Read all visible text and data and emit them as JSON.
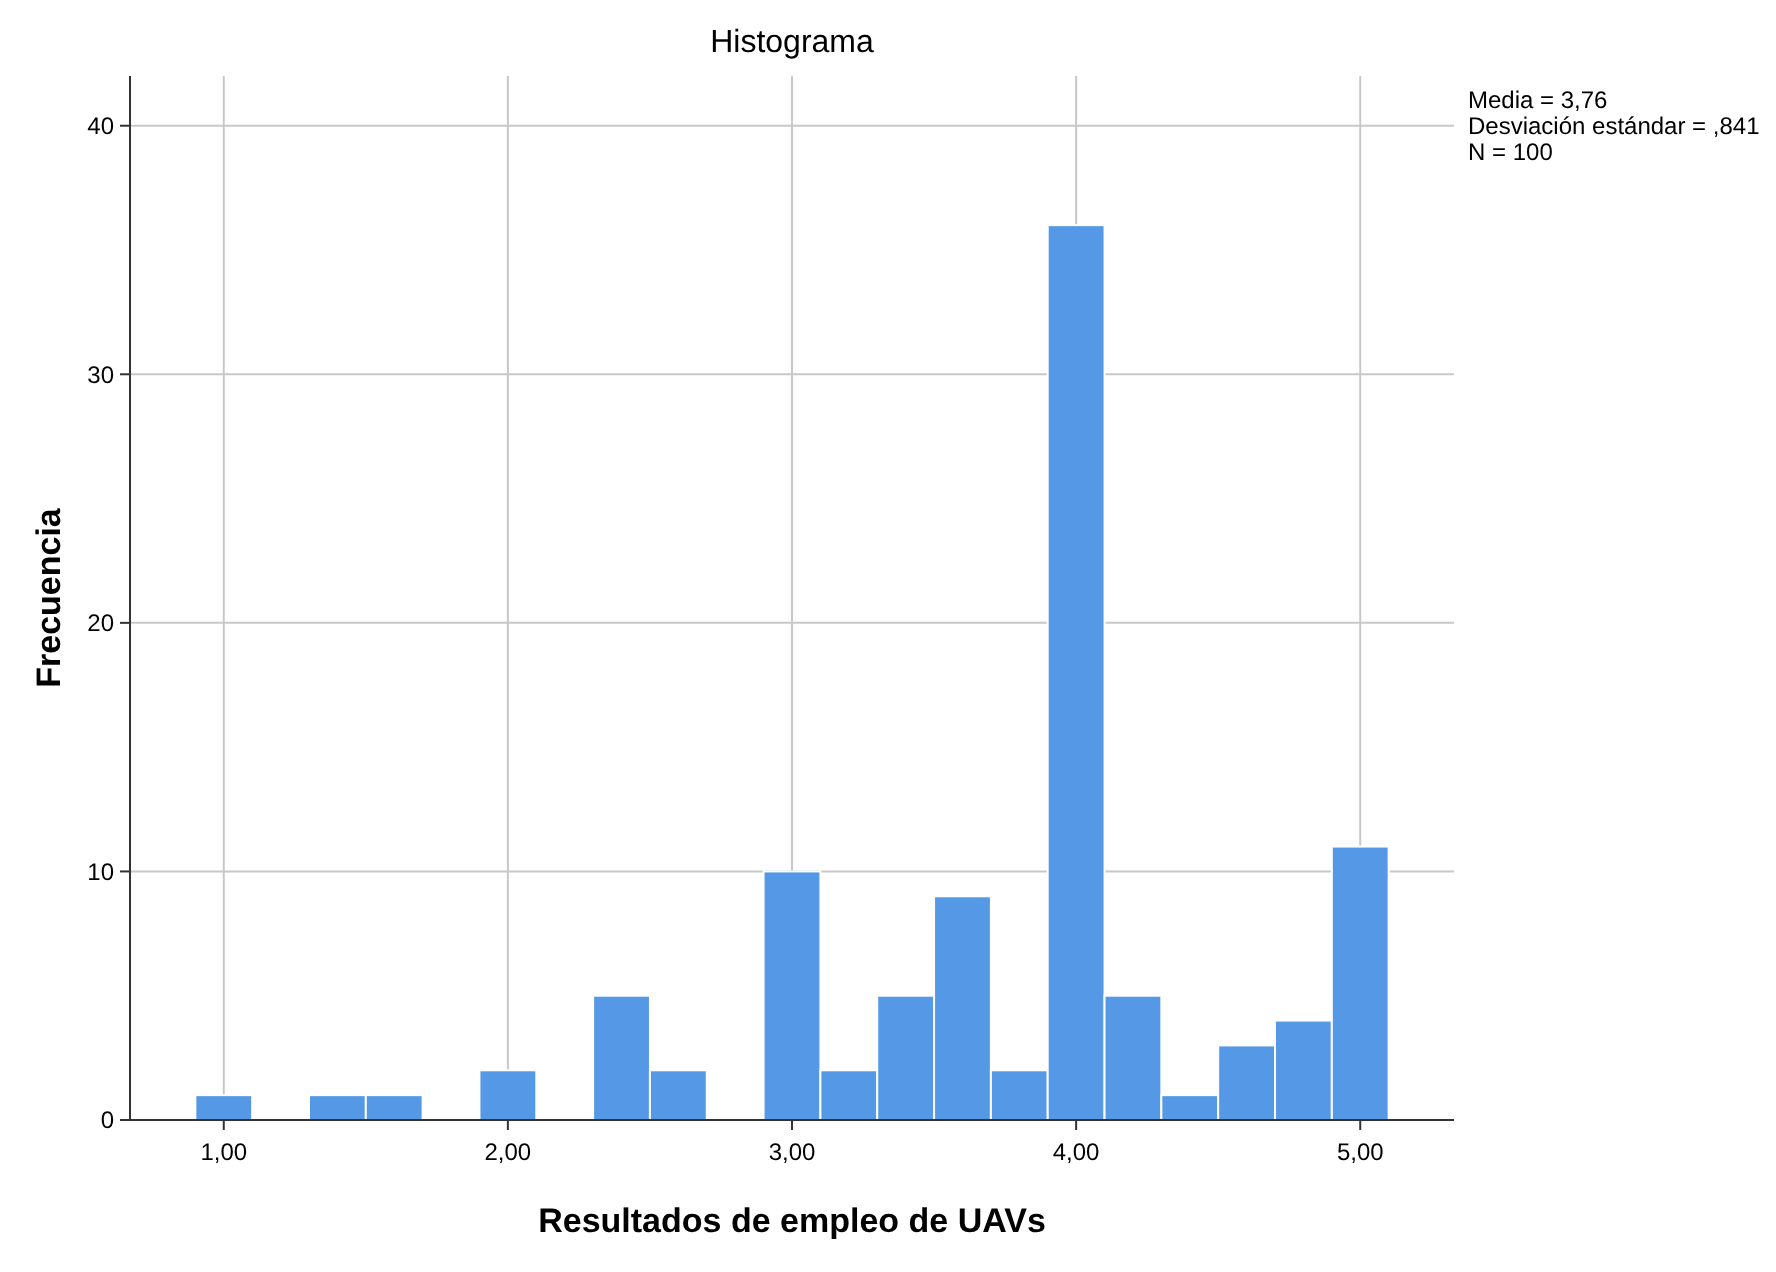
{
  "chart_data": {
    "type": "histogram",
    "title": "Histograma",
    "xlabel": "Resultados de empleo de UAVs",
    "ylabel": "Frecuencia",
    "bins": [
      0.9,
      1.1,
      1.3,
      1.5,
      1.7,
      1.9,
      2.1,
      2.3,
      2.5,
      2.7,
      2.9,
      3.1,
      3.3,
      3.5,
      3.7,
      3.9,
      4.1,
      4.3,
      4.5,
      4.7,
      4.9,
      5.1
    ],
    "values": [
      1,
      0,
      1,
      1,
      0,
      2,
      0,
      5,
      2,
      0,
      10,
      2,
      5,
      9,
      2,
      36,
      5,
      1,
      3,
      4,
      11
    ],
    "color": "#5599e6",
    "xlim": [
      0.67,
      5.33
    ],
    "xticks": [
      {
        "value": 1,
        "label": "1,00"
      },
      {
        "value": 2,
        "label": "2,00"
      },
      {
        "value": 3,
        "label": "3,00"
      },
      {
        "value": 4,
        "label": "4,00"
      },
      {
        "value": 5,
        "label": "5,00"
      }
    ],
    "ylim": [
      0,
      42
    ],
    "yticks": [
      0,
      10,
      20,
      30,
      40
    ],
    "grid": true,
    "annotations": [
      "Media = 3,76",
      "Desviación estándar = ,841",
      "N = 100"
    ]
  }
}
